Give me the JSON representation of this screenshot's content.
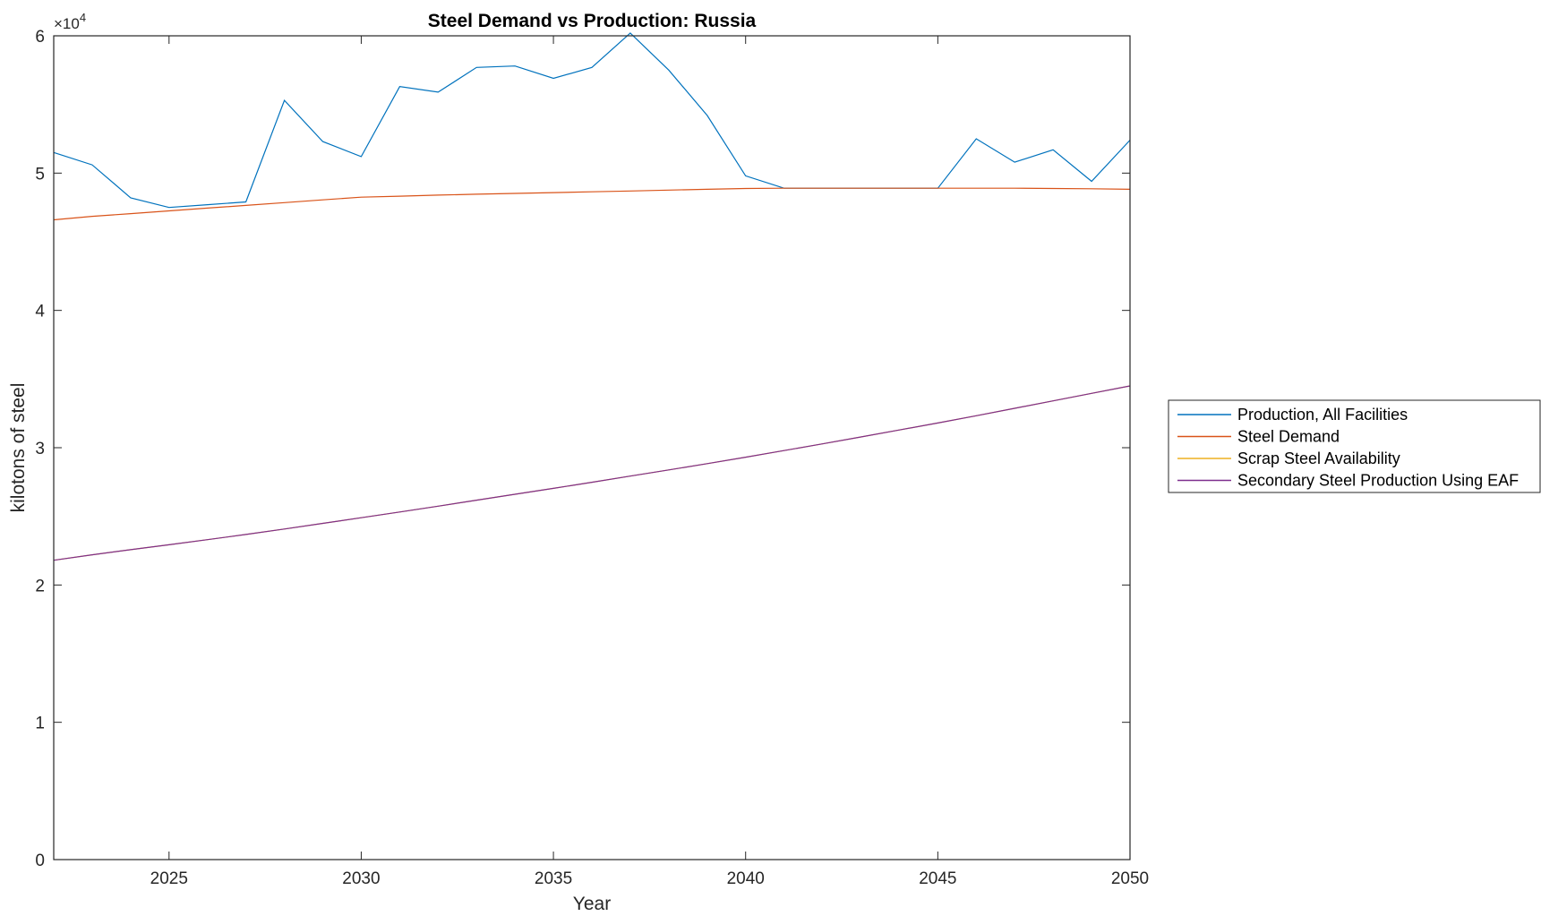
{
  "chart_data": {
    "type": "line",
    "title": "Steel Demand vs Production: Russia",
    "xlabel": "Year",
    "ylabel": "kilotons of steel",
    "xlim": [
      2022,
      2050
    ],
    "ylim": [
      0,
      60000
    ],
    "xticks": [
      2025,
      2030,
      2035,
      2040,
      2045,
      2050
    ],
    "yticks": [
      0,
      10000,
      20000,
      30000,
      40000,
      50000,
      60000
    ],
    "ytick_labels": [
      "0",
      "1",
      "2",
      "3",
      "4",
      "5",
      "6"
    ],
    "y_exponent_base": "×10",
    "y_exponent_power": "4",
    "grid": false,
    "legend_position": "outside-right",
    "x": [
      2022,
      2023,
      2024,
      2025,
      2026,
      2027,
      2028,
      2029,
      2030,
      2031,
      2032,
      2033,
      2034,
      2035,
      2036,
      2037,
      2038,
      2039,
      2040,
      2041,
      2042,
      2043,
      2044,
      2045,
      2046,
      2047,
      2048,
      2049,
      2050
    ],
    "series": [
      {
        "name": "Production, All Facilities",
        "color": "#0072BD",
        "values": [
          51500,
          50600,
          48200,
          47500,
          47700,
          47900,
          55300,
          52300,
          51200,
          56300,
          55900,
          57700,
          57800,
          56900,
          57700,
          60200,
          57500,
          54200,
          49800,
          48900,
          48900,
          48900,
          48900,
          48900,
          52500,
          50800,
          51700,
          49400,
          52400
        ]
      },
      {
        "name": "Steel Demand",
        "color": "#D95319",
        "values": [
          46600,
          46850,
          47050,
          47250,
          47450,
          47650,
          47850,
          48050,
          48250,
          48320,
          48400,
          48460,
          48520,
          48580,
          48640,
          48700,
          48760,
          48820,
          48880,
          48900,
          48900,
          48900,
          48900,
          48900,
          48900,
          48900,
          48880,
          48860,
          48820
        ]
      },
      {
        "name": "Scrap Steel Availability",
        "color": "#EDB120",
        "values": [
          21800,
          22200,
          22570,
          22930,
          23300,
          23680,
          24080,
          24490,
          24900,
          25320,
          25740,
          26180,
          26610,
          27040,
          27480,
          27930,
          28380,
          28840,
          29310,
          29790,
          30280,
          30780,
          31290,
          31800,
          32330,
          32870,
          33410,
          33960,
          34500
        ]
      },
      {
        "name": "Secondary Steel Production Using EAF",
        "color": "#7E2F8E",
        "values": [
          21800,
          22200,
          22570,
          22930,
          23300,
          23680,
          24080,
          24490,
          24900,
          25320,
          25740,
          26180,
          26610,
          27040,
          27480,
          27930,
          28380,
          28840,
          29310,
          29790,
          30280,
          30780,
          31290,
          31800,
          32330,
          32870,
          33410,
          33960,
          34500
        ]
      }
    ]
  }
}
